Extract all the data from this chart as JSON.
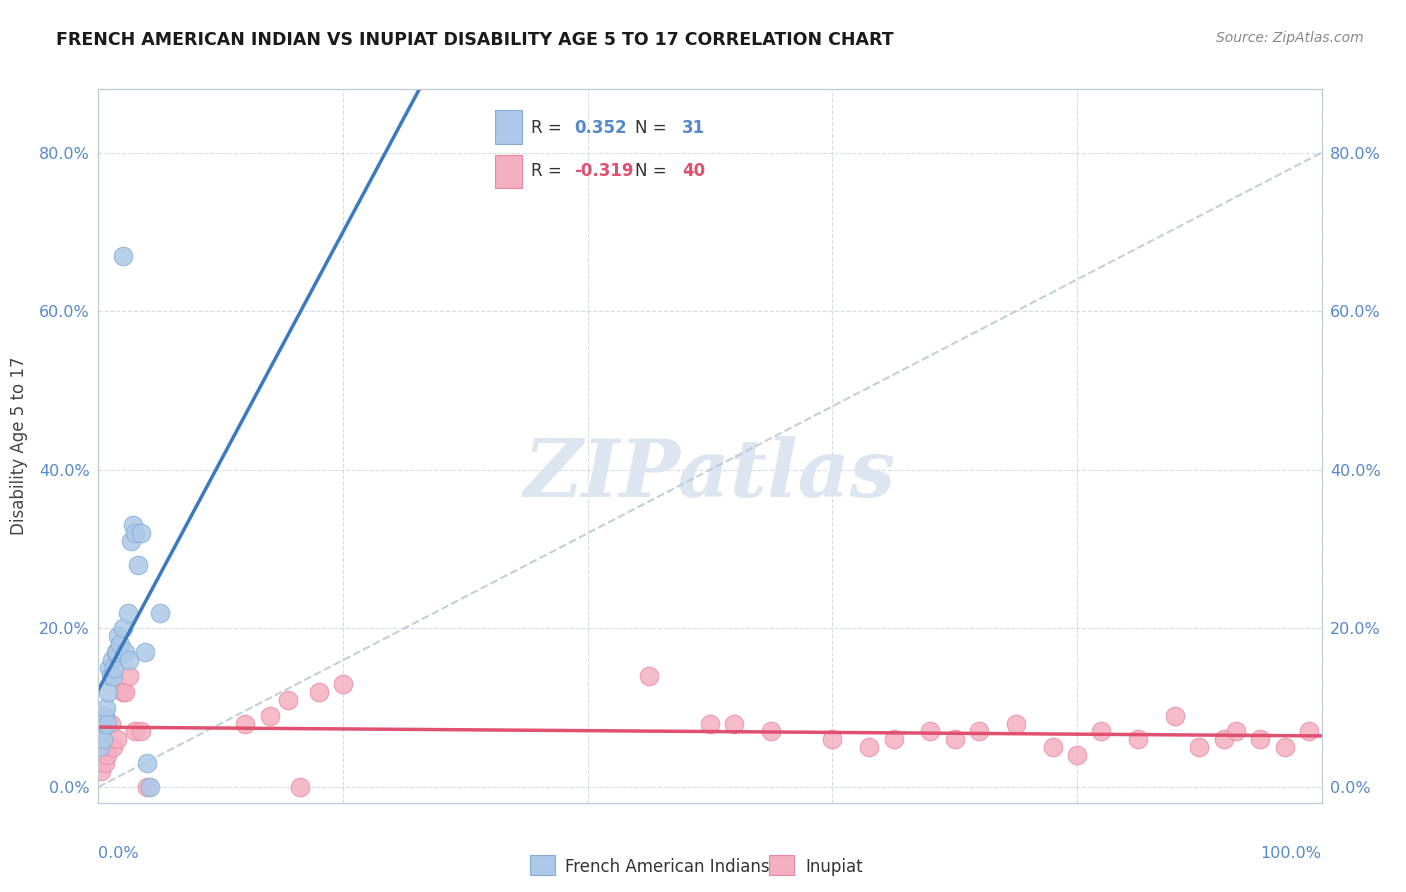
{
  "title": "FRENCH AMERICAN INDIAN VS INUPIAT DISABILITY AGE 5 TO 17 CORRELATION CHART",
  "source": "Source: ZipAtlas.com",
  "ylabel": "Disability Age 5 to 17",
  "blue_R": 0.352,
  "blue_N": 31,
  "pink_R": -0.319,
  "pink_N": 40,
  "blue_label": "French American Indians",
  "pink_label": "Inupiat",
  "bg_color": "#ffffff",
  "blue_dot_color": "#adc8e8",
  "blue_dot_edge": "#85aed4",
  "pink_dot_color": "#f4afc0",
  "pink_dot_edge": "#e888a0",
  "blue_line_color": "#3a7abf",
  "pink_line_color": "#e05070",
  "diag_line_color": "#b8c8d4",
  "tick_color": "#5588cc",
  "watermark_color": "#dde6f0",
  "blue_x": [
    0.001,
    0.002,
    0.003,
    0.004,
    0.005,
    0.006,
    0.007,
    0.008,
    0.009,
    0.01,
    0.011,
    0.012,
    0.013,
    0.014,
    0.015,
    0.016,
    0.018,
    0.02,
    0.022,
    0.024,
    0.025,
    0.027,
    0.028,
    0.03,
    0.032,
    0.035,
    0.038,
    0.04,
    0.042,
    0.05,
    0.02
  ],
  "blue_y": [
    0.05,
    0.07,
    0.08,
    0.06,
    0.09,
    0.1,
    0.08,
    0.12,
    0.15,
    0.14,
    0.16,
    0.14,
    0.15,
    0.17,
    0.17,
    0.19,
    0.18,
    0.2,
    0.17,
    0.22,
    0.16,
    0.31,
    0.33,
    0.32,
    0.28,
    0.32,
    0.17,
    0.03,
    0.0,
    0.22,
    0.67
  ],
  "pink_x": [
    0.002,
    0.005,
    0.007,
    0.01,
    0.012,
    0.015,
    0.02,
    0.022,
    0.025,
    0.03,
    0.035,
    0.04,
    0.12,
    0.14,
    0.155,
    0.165,
    0.18,
    0.2,
    0.45,
    0.5,
    0.52,
    0.55,
    0.6,
    0.63,
    0.65,
    0.68,
    0.7,
    0.72,
    0.75,
    0.78,
    0.8,
    0.82,
    0.85,
    0.88,
    0.9,
    0.92,
    0.93,
    0.95,
    0.97,
    0.99
  ],
  "pink_y": [
    0.02,
    0.03,
    0.04,
    0.08,
    0.05,
    0.06,
    0.12,
    0.12,
    0.14,
    0.07,
    0.07,
    0.0,
    0.08,
    0.09,
    0.11,
    0.0,
    0.12,
    0.13,
    0.14,
    0.08,
    0.08,
    0.07,
    0.06,
    0.05,
    0.06,
    0.07,
    0.06,
    0.07,
    0.08,
    0.05,
    0.04,
    0.07,
    0.06,
    0.09,
    0.05,
    0.06,
    0.07,
    0.06,
    0.05,
    0.07
  ],
  "xlim": [
    0.0,
    1.0
  ],
  "ylim": [
    -0.02,
    0.88
  ],
  "yticks": [
    0.0,
    0.2,
    0.4,
    0.6,
    0.8
  ],
  "ytick_labels": [
    "0.0%",
    "20.0%",
    "40.0%",
    "60.0%",
    "80.0%"
  ],
  "xtick_labels_show": [
    "0.0%",
    "100.0%"
  ]
}
